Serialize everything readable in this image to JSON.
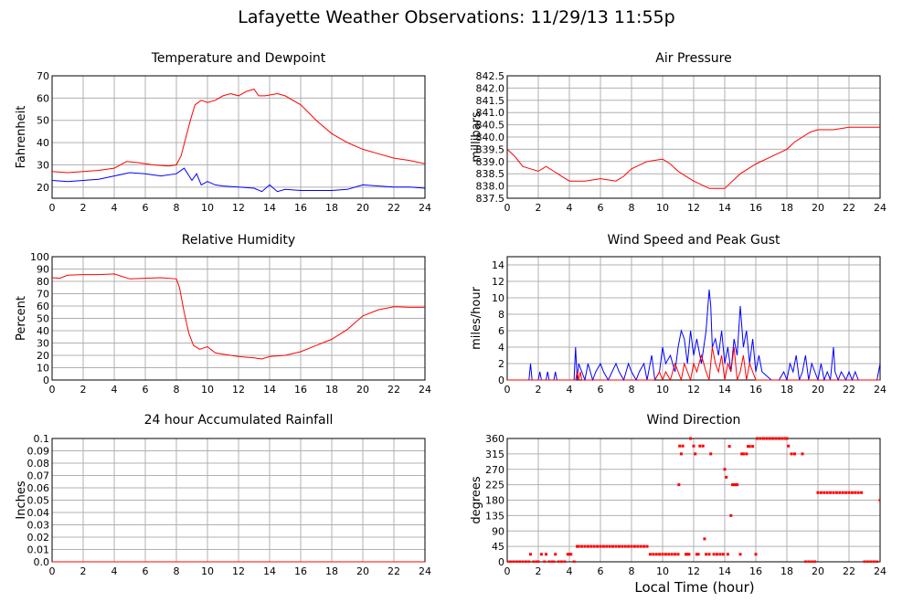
{
  "title": "Lafayette Weather Observations: 11/29/13 11:55p",
  "bottom_xlabel": "Local Time (hour)",
  "colors": {
    "red": "#ff0000",
    "blue": "#0000ff",
    "grid": "#b0b0b0"
  },
  "chart_data": [
    {
      "id": "temp",
      "type": "line",
      "title": "Temperature and Dewpoint",
      "ylabel": "Fahrenheit",
      "xlabel": "",
      "xlim": [
        0,
        24
      ],
      "ylim": [
        15,
        70
      ],
      "xticks": [
        0,
        2,
        4,
        6,
        8,
        10,
        12,
        14,
        16,
        18,
        20,
        22,
        24
      ],
      "yticks": [
        20,
        30,
        40,
        50,
        60,
        70
      ],
      "ytick_labels": [
        "20",
        "30",
        "40",
        "50",
        "60",
        "70"
      ],
      "grid": true,
      "series": [
        {
          "color": "#ff0000",
          "x": [
            0,
            1,
            2,
            3,
            4,
            4.8,
            5.5,
            6.5,
            7.5,
            8,
            8.3,
            8.6,
            8.9,
            9.2,
            9.6,
            10,
            10.5,
            11,
            11.5,
            12,
            12.5,
            13,
            13.3,
            13.7,
            14.5,
            15,
            16,
            17,
            18,
            19,
            20,
            21,
            22,
            23,
            24
          ],
          "y": [
            27,
            26.5,
            27,
            27.5,
            28.5,
            31.5,
            31,
            30,
            29.5,
            30,
            34,
            42,
            50,
            57,
            59,
            58,
            59,
            61,
            62,
            61,
            63,
            64,
            61,
            61,
            62,
            61,
            57,
            50,
            44,
            40,
            37,
            35,
            33,
            32,
            30.5
          ]
        },
        {
          "color": "#0000ff",
          "x": [
            0,
            1,
            2,
            3,
            4,
            5,
            6,
            7,
            8,
            8.5,
            9,
            9.3,
            9.6,
            10,
            10.5,
            11,
            12,
            13,
            13.5,
            14,
            14.5,
            15,
            16,
            17,
            18,
            19,
            20,
            21,
            22,
            23,
            24
          ],
          "y": [
            23,
            22.5,
            23,
            23.5,
            25,
            26.5,
            26,
            25,
            26,
            28.5,
            23,
            26,
            21,
            22.5,
            21,
            20.5,
            20,
            19.5,
            18,
            21,
            18,
            19,
            18.5,
            18.5,
            18.5,
            19,
            21,
            20.5,
            20,
            20,
            19.5
          ]
        }
      ]
    },
    {
      "id": "pressure",
      "type": "line",
      "title": "Air Pressure",
      "ylabel": "millibars",
      "xlabel": "",
      "xlim": [
        0,
        24
      ],
      "ylim": [
        837.5,
        842.5
      ],
      "xticks": [
        0,
        2,
        4,
        6,
        8,
        10,
        12,
        14,
        16,
        18,
        20,
        22,
        24
      ],
      "yticks": [
        837.5,
        838.0,
        838.5,
        839.0,
        839.5,
        840.0,
        840.5,
        841.0,
        841.5,
        842.0,
        842.5
      ],
      "ytick_labels": [
        "837.5",
        "838.0",
        "838.5",
        "839.0",
        "839.5",
        "840.0",
        "840.5",
        "841.0",
        "841.5",
        "842.0",
        "842.5"
      ],
      "grid": true,
      "series": [
        {
          "color": "#ff0000",
          "x": [
            0,
            0.5,
            1,
            1.5,
            2,
            2.5,
            3,
            3.5,
            4,
            5,
            6,
            7,
            7.5,
            8,
            9,
            10,
            10.5,
            11,
            11.5,
            12,
            13,
            14,
            14.5,
            15,
            16,
            17,
            18,
            18.5,
            19,
            19.5,
            20,
            21,
            22,
            23,
            24
          ],
          "y": [
            839.5,
            839.2,
            838.8,
            838.7,
            838.6,
            838.8,
            838.6,
            838.4,
            838.2,
            838.2,
            838.3,
            838.2,
            838.4,
            838.7,
            839.0,
            839.1,
            838.9,
            838.6,
            838.4,
            838.2,
            837.9,
            837.9,
            838.2,
            838.5,
            838.9,
            839.2,
            839.5,
            839.8,
            840.0,
            840.2,
            840.3,
            840.3,
            840.4,
            840.4,
            840.4
          ]
        }
      ]
    },
    {
      "id": "humidity",
      "type": "line",
      "title": "Relative Humidity",
      "ylabel": "Percent",
      "xlabel": "",
      "xlim": [
        0,
        24
      ],
      "ylim": [
        0,
        100
      ],
      "xticks": [
        0,
        2,
        4,
        6,
        8,
        10,
        12,
        14,
        16,
        18,
        20,
        22,
        24
      ],
      "yticks": [
        0,
        10,
        20,
        30,
        40,
        50,
        60,
        70,
        80,
        90,
        100
      ],
      "ytick_labels": [
        "0",
        "10",
        "20",
        "30",
        "40",
        "50",
        "60",
        "70",
        "80",
        "90",
        "100"
      ],
      "grid": true,
      "series": [
        {
          "color": "#ff0000",
          "x": [
            0,
            0.5,
            1,
            2,
            3,
            4,
            4.5,
            5,
            6,
            7,
            8,
            8.2,
            8.5,
            8.8,
            9.1,
            9.5,
            10,
            10.5,
            11,
            12,
            13,
            13.5,
            14,
            15,
            16,
            17,
            18,
            19,
            20,
            21,
            22,
            23,
            24
          ],
          "y": [
            83,
            82.5,
            85,
            85.5,
            85.5,
            86,
            84,
            82,
            82.5,
            83,
            82,
            75,
            55,
            38,
            28,
            25,
            27,
            22,
            21,
            19,
            18,
            17,
            19,
            20,
            23,
            28,
            33,
            41,
            52,
            57,
            59.5,
            59,
            59
          ]
        }
      ]
    },
    {
      "id": "wind",
      "type": "line",
      "title": "Wind Speed and Peak Gust",
      "ylabel": "miles/hour",
      "xlabel": "",
      "xlim": [
        0,
        24
      ],
      "ylim": [
        0,
        15
      ],
      "xticks": [
        0,
        2,
        4,
        6,
        8,
        10,
        12,
        14,
        16,
        18,
        20,
        22,
        24
      ],
      "yticks": [
        0,
        2,
        4,
        6,
        8,
        10,
        12,
        14
      ],
      "ytick_labels": [
        "0",
        "2",
        "4",
        "6",
        "8",
        "10",
        "12",
        "14"
      ],
      "grid": true,
      "series": [
        {
          "color": "#0000ff",
          "x": [
            0,
            1.4,
            1.5,
            1.6,
            2,
            2.1,
            2.2,
            2.5,
            2.6,
            2.7,
            3,
            3.1,
            3.2,
            4,
            4.3,
            4.4,
            4.5,
            4.6,
            4.8,
            5,
            5.2,
            5.5,
            5.7,
            6,
            6.2,
            6.5,
            7,
            7.2,
            7.5,
            7.8,
            8,
            8.3,
            8.5,
            8.8,
            9,
            9.3,
            9.5,
            9.8,
            10,
            10.2,
            10.5,
            10.8,
            11,
            11.2,
            11.4,
            11.6,
            11.8,
            12,
            12.2,
            12.5,
            12.8,
            13,
            13.1,
            13.2,
            13.4,
            13.6,
            13.8,
            14,
            14.2,
            14.4,
            14.6,
            14.8,
            15,
            15.2,
            15.4,
            15.6,
            15.8,
            16,
            16.2,
            16.4,
            17,
            17.5,
            17.8,
            18,
            18.2,
            18.4,
            18.6,
            18.8,
            19,
            19.2,
            19.4,
            19.6,
            19.8,
            20,
            20.2,
            20.4,
            20.6,
            20.8,
            21,
            21.1,
            21.3,
            21.5,
            21.8,
            22,
            22.2,
            22.4,
            22.6,
            23,
            23.8,
            24
          ],
          "y": [
            0,
            0,
            2,
            0,
            0,
            1,
            0,
            0,
            1,
            0,
            0,
            1,
            0,
            0,
            0,
            4,
            0,
            2,
            1,
            0,
            2,
            0,
            1,
            2,
            1,
            0,
            2,
            1,
            0,
            2,
            1,
            0,
            1,
            2,
            0,
            3,
            0,
            1,
            4,
            2,
            3,
            1,
            4,
            6,
            5,
            2,
            6,
            3,
            5,
            2,
            6,
            11,
            9,
            4,
            5,
            3,
            6,
            2,
            4,
            1,
            5,
            3,
            9,
            4,
            6,
            2,
            5,
            1,
            3,
            1,
            0,
            0,
            1,
            0,
            2,
            1,
            3,
            0,
            1,
            3,
            0,
            2,
            1,
            0,
            2,
            0,
            1,
            0,
            4,
            1,
            0,
            1,
            0,
            1,
            0,
            1,
            0,
            0,
            0,
            2
          ]
        },
        {
          "color": "#ff0000",
          "x": [
            0,
            4.4,
            4.5,
            4.6,
            4.7,
            4.8,
            9.5,
            9.8,
            10,
            10.2,
            10.5,
            10.8,
            11,
            11.2,
            11.4,
            11.6,
            11.8,
            12,
            12.2,
            12.5,
            12.8,
            13,
            13.2,
            13.4,
            13.6,
            13.8,
            14,
            14.2,
            14.4,
            14.6,
            14.8,
            15,
            15.2,
            15.4,
            15.6,
            15.8,
            16,
            24
          ],
          "y": [
            0,
            0,
            1,
            0,
            1,
            0,
            0,
            1,
            0,
            1,
            0,
            2,
            1,
            0,
            2,
            1,
            0,
            2,
            1,
            3,
            1,
            0,
            4,
            2,
            1,
            3,
            0,
            2,
            1,
            4,
            0,
            1,
            3,
            0,
            2,
            1,
            0,
            0
          ]
        }
      ]
    },
    {
      "id": "rain",
      "type": "line",
      "title": "24 hour Accumulated Rainfall",
      "ylabel": "Inches",
      "xlabel": "",
      "xlim": [
        0,
        24
      ],
      "ylim": [
        0,
        0.1
      ],
      "xticks": [
        0,
        2,
        4,
        6,
        8,
        10,
        12,
        14,
        16,
        18,
        20,
        22,
        24
      ],
      "yticks": [
        0,
        0.01,
        0.02,
        0.03,
        0.04,
        0.05,
        0.06,
        0.07,
        0.08,
        0.09,
        0.1
      ],
      "ytick_labels": [
        "0.0",
        "0.01",
        "0.02",
        "0.03",
        "0.04",
        "0.05",
        "0.06",
        "0.07",
        "0.08",
        "0.09",
        "0.1"
      ],
      "grid": true,
      "series": [
        {
          "color": "#ff0000",
          "x": [
            0,
            24
          ],
          "y": [
            0,
            0
          ]
        }
      ]
    },
    {
      "id": "direction",
      "type": "scatter",
      "title": "Wind Direction",
      "ylabel": "degrees",
      "xlabel": "Local Time (hour)",
      "xlim": [
        0,
        24
      ],
      "ylim": [
        0,
        360
      ],
      "xticks": [
        0,
        2,
        4,
        6,
        8,
        10,
        12,
        14,
        16,
        18,
        20,
        22,
        24
      ],
      "yticks": [
        0,
        45,
        90,
        135,
        180,
        225,
        270,
        315,
        360
      ],
      "ytick_labels": [
        "0",
        "45",
        "90",
        "135",
        "180",
        "225",
        "270",
        "315",
        "360"
      ],
      "grid": true,
      "series": [
        {
          "color": "#ff0000",
          "x": [
            0,
            0.2,
            0.4,
            0.6,
            0.8,
            1.0,
            1.2,
            1.4,
            1.5,
            1.7,
            1.9,
            2.0,
            2.2,
            2.4,
            2.5,
            2.7,
            2.9,
            3.0,
            3.1,
            3.3,
            3.5,
            3.7,
            3.9,
            4.0,
            4.1,
            4.3,
            4.5,
            4.6,
            4.8,
            5.0,
            5.2,
            5.4,
            5.6,
            5.8,
            6.0,
            6.2,
            6.4,
            6.6,
            6.8,
            7.0,
            7.2,
            7.4,
            7.6,
            7.8,
            8.0,
            8.2,
            8.4,
            8.6,
            8.8,
            9.0,
            9.2,
            9.4,
            9.6,
            9.8,
            10.0,
            10.2,
            10.4,
            10.6,
            10.8,
            11.0,
            11.05,
            11.1,
            11.2,
            11.3,
            11.5,
            11.6,
            11.7,
            11.8,
            12.0,
            12.1,
            12.2,
            12.3,
            12.4,
            12.6,
            12.7,
            12.8,
            13.0,
            13.1,
            13.3,
            13.5,
            13.7,
            13.9,
            14.0,
            14.1,
            14.2,
            14.3,
            14.4,
            14.5,
            14.6,
            14.7,
            14.8,
            15.0,
            15.1,
            15.2,
            15.4,
            15.5,
            15.6,
            15.8,
            16.0,
            16.1,
            16.3,
            16.5,
            16.7,
            16.9,
            17.1,
            17.3,
            17.5,
            17.7,
            17.9,
            18.0,
            18.1,
            18.3,
            18.5,
            19.0,
            19.2,
            19.4,
            19.6,
            19.8,
            20.0,
            20.2,
            20.4,
            20.6,
            20.8,
            21.0,
            21.2,
            21.4,
            21.6,
            21.8,
            22.0,
            22.2,
            22.4,
            22.6,
            22.8,
            23.0,
            23.2,
            23.4,
            23.6,
            23.8,
            24.0
          ],
          "y": [
            0,
            0,
            0,
            0,
            0,
            0,
            0,
            0,
            22,
            0,
            0,
            0,
            22,
            0,
            22,
            0,
            0,
            0,
            22,
            0,
            0,
            0,
            22,
            22,
            22,
            0,
            45,
            45,
            45,
            45,
            45,
            45,
            45,
            45,
            45,
            45,
            45,
            45,
            45,
            45,
            45,
            45,
            45,
            45,
            45,
            45,
            45,
            45,
            45,
            45,
            22,
            22,
            22,
            22,
            22,
            22,
            22,
            22,
            22,
            22,
            225,
            338,
            315,
            338,
            22,
            22,
            22,
            360,
            338,
            315,
            22,
            22,
            338,
            338,
            67,
            22,
            22,
            315,
            22,
            22,
            22,
            22,
            270,
            247,
            22,
            337,
            135,
            225,
            225,
            225,
            225,
            22,
            315,
            315,
            315,
            337,
            337,
            337,
            22,
            360,
            360,
            360,
            360,
            360,
            360,
            360,
            360,
            360,
            360,
            360,
            338,
            315,
            315,
            315,
            0,
            0,
            0,
            0,
            202,
            202,
            202,
            202,
            202,
            202,
            202,
            202,
            202,
            202,
            202,
            202,
            202,
            202,
            202,
            0,
            0,
            0,
            0,
            0,
            180
          ]
        }
      ]
    }
  ]
}
